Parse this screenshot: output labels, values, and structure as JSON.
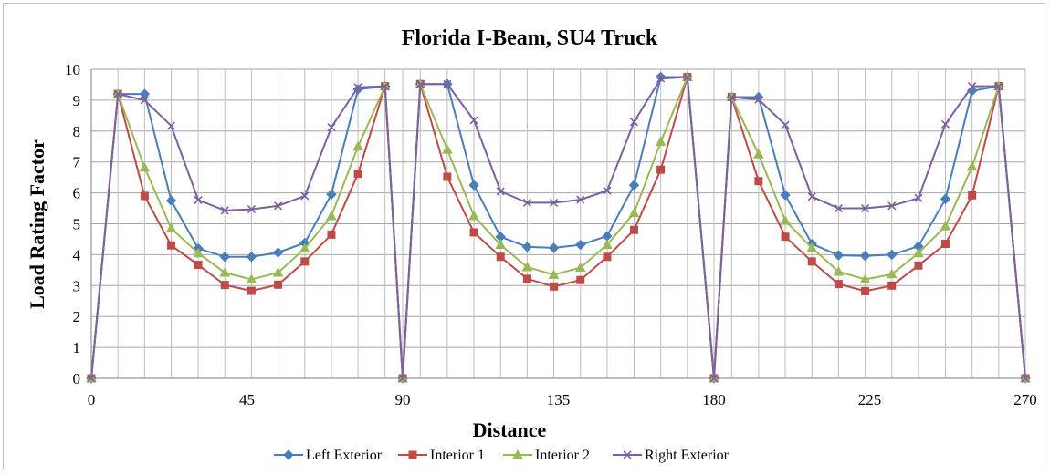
{
  "chart_data": {
    "type": "line",
    "title": "Florida I-Beam, SU4 Truck",
    "xlabel": "Distance",
    "ylabel": "Load Rating Factor",
    "xlim": [
      0,
      270
    ],
    "ylim": [
      0,
      10
    ],
    "x_ticks": [
      0,
      45,
      90,
      135,
      180,
      225,
      270
    ],
    "y_ticks": [
      0,
      1,
      2,
      3,
      4,
      5,
      6,
      7,
      8,
      9,
      10
    ],
    "grid": true,
    "legend": "bottom",
    "x": [
      0,
      7.7,
      15.4,
      23.1,
      30.9,
      38.6,
      46.3,
      54,
      61.7,
      69.4,
      77.1,
      84.9,
      90,
      95.1,
      102.9,
      110.6,
      118.3,
      126,
      133.7,
      141.4,
      149.1,
      156.9,
      164.6,
      172.3,
      180,
      185.1,
      192.9,
      200.6,
      208.3,
      216,
      223.7,
      231.4,
      239.1,
      246.9,
      254.6,
      262.3,
      270
    ],
    "series": [
      {
        "name": "Left Exterior",
        "color": "#4a7ebb",
        "marker": "diamond",
        "values": [
          0,
          9.2,
          9.2,
          5.75,
          4.2,
          3.93,
          3.93,
          4.07,
          4.38,
          5.95,
          9.35,
          9.45,
          0,
          9.52,
          9.52,
          6.25,
          4.58,
          4.25,
          4.22,
          4.32,
          4.6,
          6.25,
          9.75,
          9.75,
          0,
          9.1,
          9.1,
          5.93,
          4.35,
          3.98,
          3.96,
          4.0,
          4.27,
          5.8,
          9.3,
          9.45,
          0
        ]
      },
      {
        "name": "Interior 1",
        "color": "#be4b48",
        "marker": "square",
        "values": [
          0,
          9.2,
          5.9,
          4.3,
          3.67,
          3.02,
          2.83,
          3.03,
          3.78,
          4.65,
          6.62,
          9.45,
          0,
          9.52,
          6.52,
          4.72,
          3.93,
          3.22,
          2.97,
          3.18,
          3.93,
          4.8,
          6.75,
          9.75,
          0,
          9.1,
          6.38,
          4.58,
          3.78,
          3.05,
          2.82,
          3.0,
          3.65,
          4.35,
          5.92,
          9.45,
          0
        ]
      },
      {
        "name": "Interior 2",
        "color": "#98b954",
        "marker": "triangle",
        "values": [
          0,
          9.2,
          6.82,
          4.85,
          4.05,
          3.42,
          3.2,
          3.42,
          4.2,
          5.25,
          7.5,
          9.45,
          0,
          9.52,
          7.4,
          5.25,
          4.32,
          3.6,
          3.35,
          3.58,
          4.32,
          5.35,
          7.65,
          9.75,
          0,
          9.1,
          7.25,
          5.1,
          4.22,
          3.45,
          3.2,
          3.37,
          4.05,
          4.92,
          6.85,
          9.45,
          0
        ]
      },
      {
        "name": "Right Exterior",
        "color": "#7d60a0",
        "marker": "x",
        "values": [
          0,
          9.2,
          9.0,
          8.17,
          5.77,
          5.43,
          5.47,
          5.58,
          5.9,
          8.12,
          9.42,
          9.45,
          0,
          9.52,
          9.52,
          8.35,
          6.05,
          5.68,
          5.68,
          5.78,
          6.07,
          8.3,
          9.7,
          9.75,
          0,
          9.1,
          9.02,
          8.2,
          5.88,
          5.5,
          5.5,
          5.58,
          5.83,
          8.22,
          9.45,
          9.45,
          0
        ]
      }
    ]
  }
}
